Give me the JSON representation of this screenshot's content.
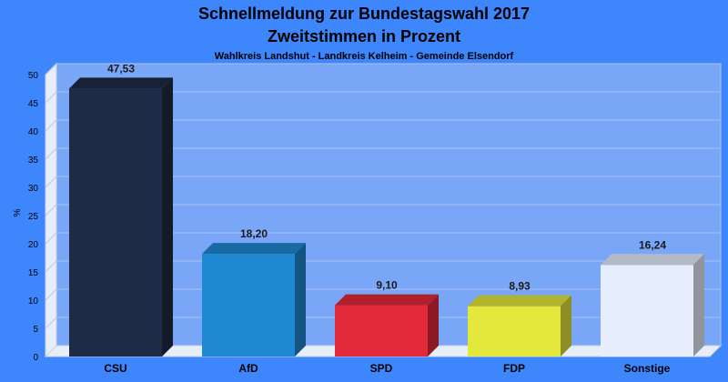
{
  "chart_data": {
    "type": "bar",
    "title": "Schnellmeldung zur Bundestagswahl 2017",
    "title_line2": "Zweitstimmen in Prozent",
    "subtitle": "Wahlkreis Landshut - Landkreis Kelheim - Gemeinde Elsendorf",
    "ylabel": "%",
    "xlabel": "",
    "ylim": [
      0,
      50
    ],
    "yticks": [
      0,
      5,
      10,
      15,
      20,
      25,
      30,
      35,
      40,
      45,
      50
    ],
    "grid": true,
    "legend": "none",
    "categories": [
      "CSU",
      "AfD",
      "SPD",
      "FDP",
      "Sonstige"
    ],
    "values": [
      47.53,
      18.2,
      9.1,
      8.93,
      16.24
    ],
    "value_labels": [
      "47,53",
      "18,20",
      "9,10",
      "8,93",
      "16,24"
    ],
    "colors": [
      "#1f2a44",
      "#1e88d2",
      "#e22a3a",
      "#e4e73c",
      "#e6eefe"
    ]
  }
}
